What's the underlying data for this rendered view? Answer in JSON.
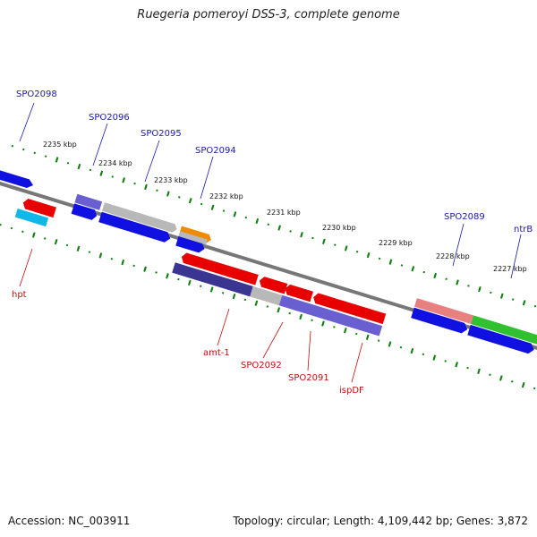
{
  "title": "Ruegeria pomeroyi DSS-3, complete genome",
  "footer": {
    "accession": "Accession: NC_003911",
    "stats": "Topology: circular; Length: 4,109,442 bp; Genes: 3,872"
  },
  "kbp_labels": [
    "2235 kbp",
    "2234 kbp",
    "2233 kbp",
    "2232 kbp",
    "2231 kbp",
    "2230 kbp",
    "2229 kbp",
    "2228 kbp",
    "2227 kbp"
  ],
  "gene_labels_top": [
    "SPO2098",
    "SPO2096",
    "SPO2095",
    "SPO2094",
    "SPO2089",
    "ntrB"
  ],
  "gene_labels_bottom": [
    "hpt",
    "amt-1",
    "SPO2092",
    "SPO2091",
    "ispDF"
  ],
  "colors": {
    "blue": "#1010e0",
    "red": "#e80000",
    "purple": "#6a5fd0",
    "dark_purple": "#3a3590",
    "gray": "#b8b8b8",
    "orange": "#f08a00",
    "cyan": "#10b8e8",
    "pink": "#e88080",
    "green": "#30c030",
    "tick_green": "#108010",
    "backbone": "#7a7a7a"
  }
}
